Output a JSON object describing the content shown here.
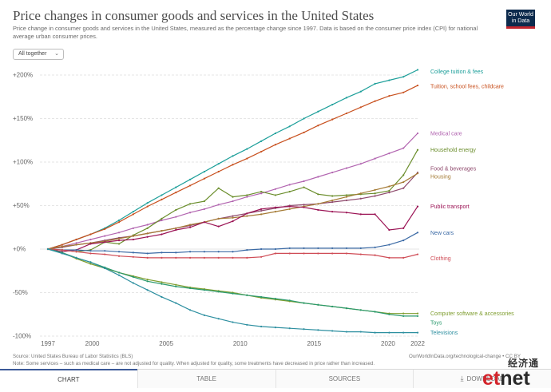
{
  "header": {
    "title": "Price changes in consumer goods and services in the United States",
    "subtitle": "Price change in consumer goods and services in the United States, measured as the percentage change since 1997. Data is based on the consumer price index (CPI) for national average urban consumer prices.",
    "logo_line1": "Our World",
    "logo_line2": "in Data"
  },
  "controls": {
    "dropdown_value": "All together",
    "chevron_icon": "chevron-down-icon"
  },
  "footer": {
    "source": "Source: United States Bureau of Labor Statistics (BLS)",
    "note": "Note: Some services – such as medical care – are not adjusted for quality. When adjusted for quality, some treatments have decreased in price rather than increased.",
    "url": "OurWorldInData.org/technological-change • CC BY"
  },
  "tabs": [
    {
      "label": "CHART",
      "active": true
    },
    {
      "label": "TABLE",
      "active": false
    },
    {
      "label": "SOURCES",
      "active": false
    },
    {
      "label": "DOWNLOAD",
      "active": false,
      "icon": "download-icon"
    }
  ],
  "watermark": {
    "cn": "经济通",
    "et": "et",
    "net": "net"
  },
  "chart_data": {
    "type": "line",
    "title": "Price changes in consumer goods and services in the United States",
    "ylim": [
      -100,
      210
    ],
    "xlim": [
      1997,
      2022
    ],
    "y_ticks": [
      {
        "value": 200,
        "label": "+200%"
      },
      {
        "value": 150,
        "label": "+150%"
      },
      {
        "value": 100,
        "label": "+100%"
      },
      {
        "value": 50,
        "label": "+50%"
      },
      {
        "value": 0,
        "label": "+0%"
      },
      {
        "value": -50,
        "label": "-50%"
      },
      {
        "value": -100,
        "label": "-100%"
      }
    ],
    "x_ticks": [
      "1997",
      "2000",
      "2005",
      "2010",
      "2015",
      "2020",
      "2022"
    ],
    "grid": true,
    "legend": "line-end labels",
    "series": [
      {
        "name": "College tuition & fees",
        "color": "#1d9f9a",
        "values": [
          0,
          5,
          11,
          17,
          24,
          33,
          43,
          53,
          62,
          71,
          80,
          89,
          98,
          107,
          115,
          124,
          133,
          141,
          150,
          158,
          166,
          174,
          181,
          190,
          194,
          198,
          206
        ]
      },
      {
        "name": "Tuition, school fees, childcare",
        "color": "#c8501e",
        "values": [
          0,
          5,
          11,
          17,
          23,
          31,
          40,
          49,
          57,
          65,
          73,
          81,
          89,
          97,
          104,
          112,
          120,
          127,
          134,
          142,
          149,
          156,
          163,
          170,
          176,
          180,
          188
        ]
      },
      {
        "name": "Medical care",
        "color": "#b265b0",
        "values": [
          0,
          3,
          7,
          11,
          15,
          19,
          24,
          28,
          33,
          37,
          42,
          46,
          51,
          55,
          60,
          64,
          69,
          74,
          78,
          83,
          88,
          93,
          98,
          104,
          110,
          116,
          133
        ]
      },
      {
        "name": "Household energy",
        "color": "#6a8d2b",
        "values": [
          0,
          -1,
          -3,
          -1,
          8,
          6,
          16,
          24,
          35,
          45,
          52,
          55,
          70,
          60,
          62,
          66,
          62,
          66,
          71,
          63,
          61,
          62,
          63,
          64,
          67,
          85,
          114
        ]
      },
      {
        "name": "Food & beverages",
        "color": "#8f4a6d",
        "values": [
          0,
          2,
          5,
          7,
          10,
          13,
          15,
          18,
          21,
          24,
          27,
          31,
          35,
          38,
          41,
          44,
          47,
          50,
          51,
          52,
          54,
          56,
          58,
          61,
          65,
          70,
          88
        ]
      },
      {
        "name": "Housing",
        "color": "#a57b35",
        "values": [
          0,
          3,
          5,
          7,
          9,
          12,
          15,
          18,
          21,
          24,
          28,
          31,
          35,
          36,
          38,
          40,
          43,
          46,
          49,
          52,
          56,
          60,
          64,
          68,
          72,
          77,
          87
        ]
      },
      {
        "name": "Public transport",
        "color": "#9b1455",
        "values": [
          0,
          -3,
          -1,
          6,
          8,
          10,
          11,
          14,
          17,
          22,
          25,
          31,
          26,
          32,
          41,
          46,
          48,
          49,
          48,
          45,
          43,
          42,
          40,
          40,
          22,
          24,
          49
        ]
      },
      {
        "name": "New cars",
        "color": "#3b6aa5",
        "values": [
          0,
          -1,
          -1,
          -2,
          -2,
          -3,
          -4,
          -5,
          -4,
          -4,
          -3,
          -3,
          -3,
          -3,
          -1,
          0,
          0,
          1,
          1,
          1,
          1,
          1,
          1,
          2,
          5,
          10,
          19
        ]
      },
      {
        "name": "Clothing",
        "color": "#cf4c56",
        "values": [
          0,
          -1,
          -3,
          -5,
          -6,
          -8,
          -9,
          -10,
          -10,
          -10,
          -10,
          -10,
          -10,
          -10,
          -10,
          -9,
          -5,
          -5,
          -5,
          -5,
          -5,
          -5,
          -6,
          -7,
          -10,
          -10,
          -6
        ]
      },
      {
        "name": "Computer software & accessories",
        "color": "#7e9d2e",
        "values": [
          0,
          -4,
          -11,
          -17,
          -22,
          -27,
          -31,
          -35,
          -38,
          -41,
          -44,
          -46,
          -48,
          -50,
          -53,
          -56,
          -58,
          -60,
          -62,
          -64,
          -66,
          -68,
          -70,
          -72,
          -74,
          -74,
          -74
        ]
      },
      {
        "name": "Toys",
        "color": "#2b9a6e",
        "values": [
          0,
          -4,
          -10,
          -15,
          -21,
          -27,
          -32,
          -37,
          -40,
          -43,
          -45,
          -47,
          -49,
          -51,
          -53,
          -55,
          -57,
          -59,
          -62,
          -64,
          -66,
          -68,
          -70,
          -72,
          -75,
          -77,
          -77
        ]
      },
      {
        "name": "Televisions",
        "color": "#2d8fa0",
        "values": [
          0,
          -5,
          -10,
          -15,
          -22,
          -30,
          -39,
          -47,
          -55,
          -62,
          -70,
          -76,
          -80,
          -84,
          -87,
          -89,
          -90,
          -91,
          -92,
          -93,
          -94,
          -95,
          -95,
          -96,
          -96,
          -96,
          -96
        ]
      }
    ]
  }
}
